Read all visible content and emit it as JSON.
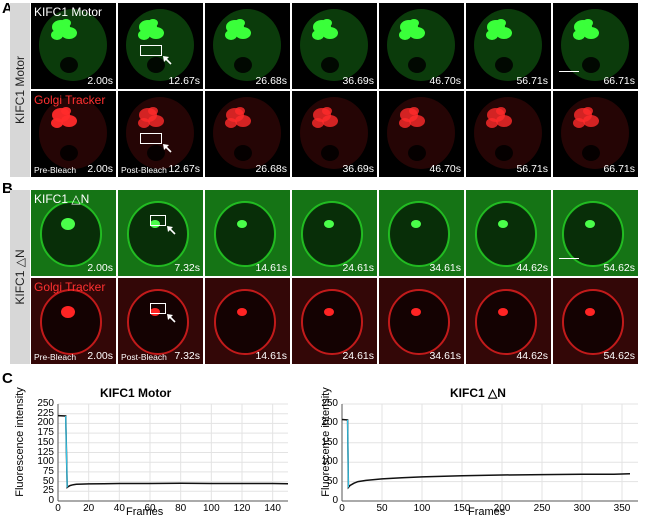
{
  "panel_labels": {
    "a": "A",
    "b": "B",
    "c": "C"
  },
  "section_a": {
    "side_label": "KIFC1 Motor",
    "rows": [
      {
        "channel": "KIFC1 Motor",
        "color": "#27d427",
        "times": [
          "2.00s",
          "12.67s",
          "26.68s",
          "36.69s",
          "46.70s",
          "56.71s",
          "66.71s"
        ],
        "stages": [
          "",
          "",
          "",
          "",
          "",
          "",
          ""
        ]
      },
      {
        "channel": "Golgi Tracker",
        "color": "#e82020",
        "times": [
          "2.00s",
          "12.67s",
          "26.68s",
          "36.69s",
          "46.70s",
          "56.71s",
          "66.71s"
        ],
        "stages": [
          "Pre-Bleach",
          "Post-Bleach",
          "",
          "",
          "",
          "",
          ""
        ]
      }
    ]
  },
  "section_b": {
    "side_label": "KIFC1 △N",
    "rows": [
      {
        "channel": "KIFC1 △N",
        "color": "#27d427",
        "times": [
          "2.00s",
          "7.32s",
          "14.61s",
          "24.61s",
          "34.61s",
          "44.62s",
          "54.62s"
        ],
        "stages": [
          "",
          "",
          "",
          "",
          "",
          "",
          ""
        ]
      },
      {
        "channel": "Golgi Tracker",
        "color": "#e82020",
        "times": [
          "2.00s",
          "7.32s",
          "14.61s",
          "24.61s",
          "34.61s",
          "44.62s",
          "54.62s"
        ],
        "stages": [
          "Pre-Bleach",
          "Post-Bleach",
          "",
          "",
          "",
          "",
          ""
        ]
      }
    ]
  },
  "chart_data": [
    {
      "type": "line",
      "title": "KIFC1 Motor",
      "xlabel": "Frames",
      "ylabel": "Fluorescence intensity",
      "xlim": [
        0,
        150
      ],
      "ylim": [
        0,
        250
      ],
      "xticks": [
        0,
        20,
        40,
        60,
        80,
        100,
        120,
        140
      ],
      "yticks": [
        0,
        25,
        50,
        75,
        100,
        125,
        150,
        175,
        200,
        225,
        250
      ],
      "grid": true,
      "series": [
        {
          "name": "intensity",
          "x": [
            0,
            5,
            6,
            7,
            8,
            10,
            12,
            15,
            20,
            30,
            40,
            60,
            80,
            100,
            120,
            140,
            150
          ],
          "y": [
            220,
            219,
            35,
            38,
            40,
            42,
            43,
            43.5,
            44,
            44.5,
            45,
            45,
            45.5,
            45,
            45,
            45,
            44.5
          ]
        }
      ]
    },
    {
      "type": "line",
      "title": "KIFC1 △N",
      "xlabel": "Frames",
      "ylabel": "Fluorescence intensity",
      "xlim": [
        0,
        370
      ],
      "ylim": [
        0,
        250
      ],
      "xticks": [
        0,
        50,
        100,
        150,
        200,
        250,
        300,
        350
      ],
      "yticks": [
        0,
        50,
        100,
        150,
        200,
        250
      ],
      "grid": true,
      "series": [
        {
          "name": "intensity",
          "x": [
            0,
            7,
            8,
            10,
            15,
            20,
            30,
            50,
            75,
            100,
            150,
            200,
            250,
            300,
            340,
            360
          ],
          "y": [
            210,
            209,
            35,
            40,
            46,
            50,
            53,
            57,
            60,
            62,
            65,
            67,
            68,
            69,
            69,
            70
          ]
        }
      ]
    }
  ]
}
